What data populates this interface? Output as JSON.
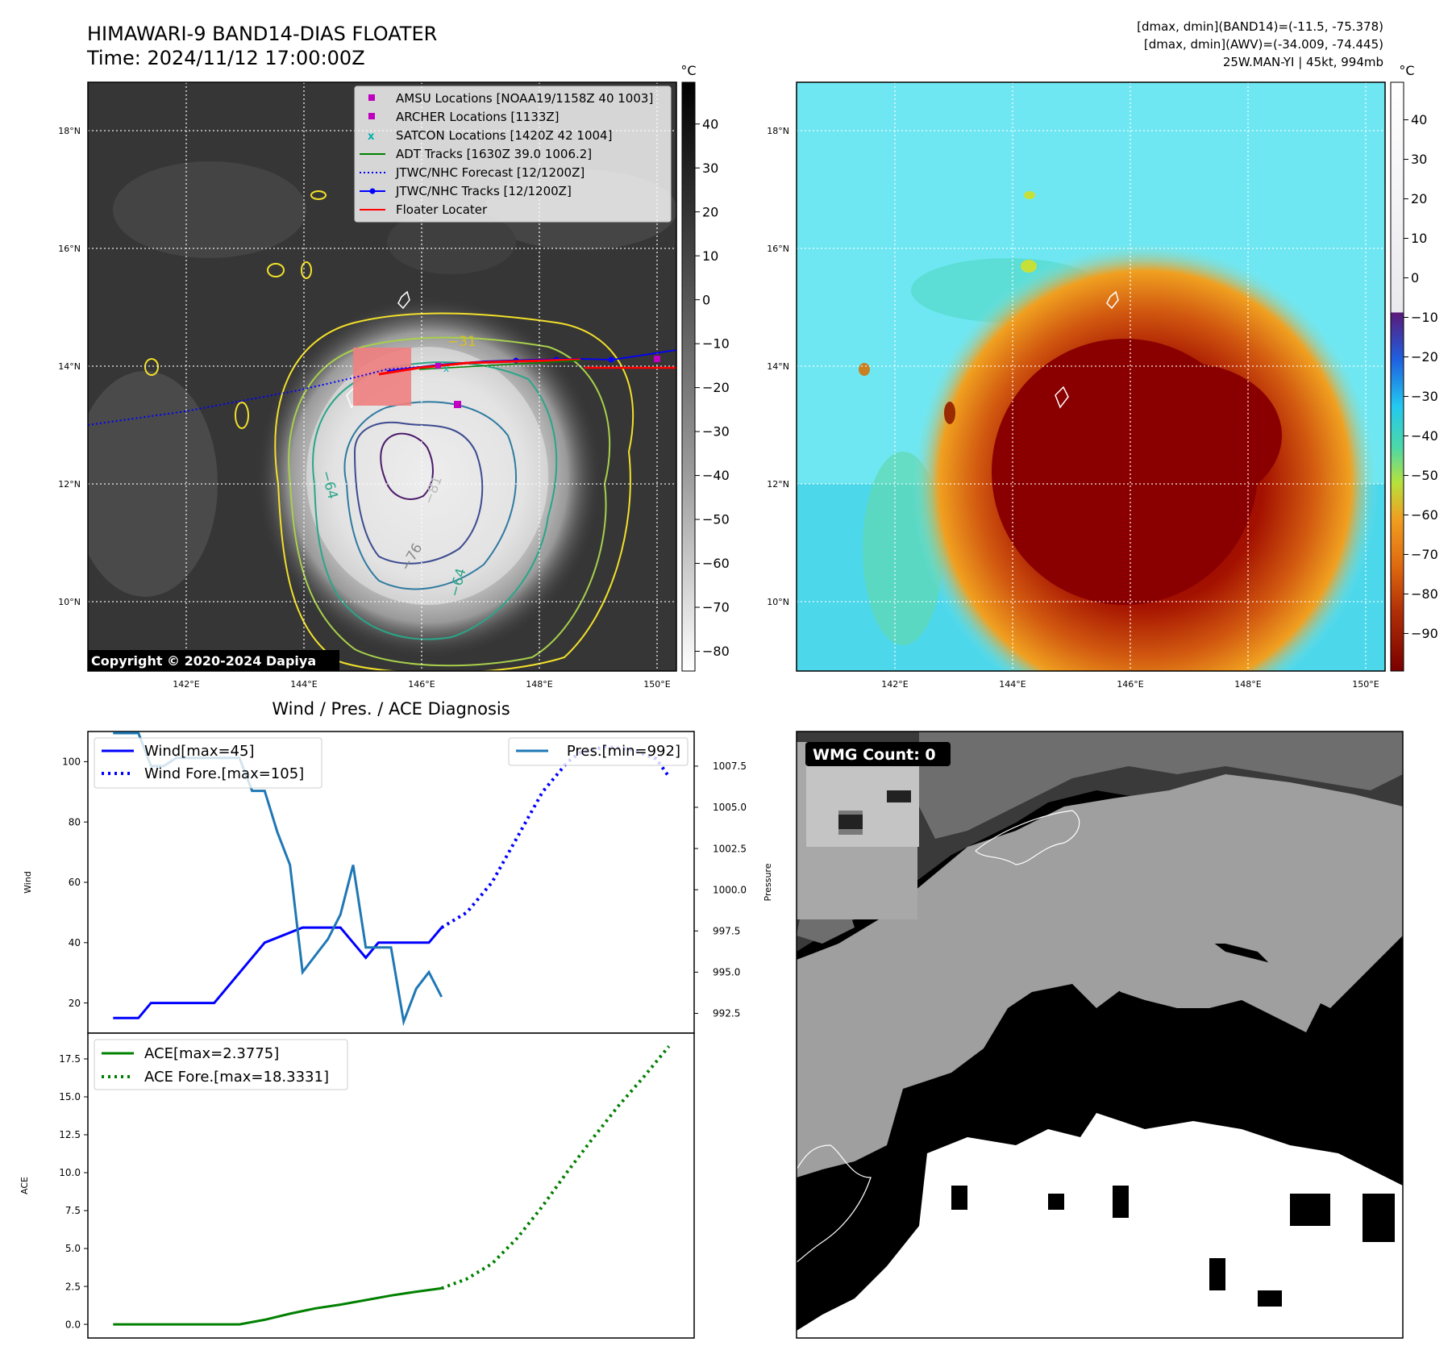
{
  "header": {
    "title": "HIMAWARI-9 BAND14-DIAS FLOATER",
    "time": "Time: 2024/11/12 17:00:00Z",
    "dmax_band14": "[dmax, dmin](BAND14)=(-11.5, -75.378)",
    "dmax_awv": "[dmax, dmin](AWV)=(-34.009, -74.445)",
    "storm": "25W.MAN-YI | 45kt, 994mb"
  },
  "map_axes": {
    "lat_labels": [
      "18°N",
      "16°N",
      "14°N",
      "12°N",
      "10°N"
    ],
    "lon_labels": [
      "142°E",
      "144°E",
      "146°E",
      "148°E",
      "150°E"
    ]
  },
  "ir_panel": {
    "copyright": "Copyright © 2020-2024 Dapiya",
    "colorbar_unit": "°C",
    "colorbar_ticks": [
      "40",
      "30",
      "20",
      "10",
      "0",
      "−10",
      "−20",
      "−30",
      "−40",
      "−50",
      "−60",
      "−70",
      "−80"
    ],
    "contour_labels": [
      "−31",
      "−64",
      "−81",
      "−76",
      "−64"
    ],
    "legend": [
      {
        "label": "AMSU Locations [NOAA19/1158Z 40 1003]",
        "color": "#c000c0",
        "marker": "square"
      },
      {
        "label": "ARCHER Locations [1133Z]",
        "color": "#c000c0",
        "marker": "square"
      },
      {
        "label": "SATCON Locations [1420Z 42 1004]",
        "color": "#00b0b0",
        "marker": "x"
      },
      {
        "label": "ADT Tracks [1630Z 39.0 1006.2]",
        "color": "#008000",
        "marker": "line"
      },
      {
        "label": "JTWC/NHC Forecast [12/1200Z]",
        "color": "#0000ff",
        "marker": "dotted"
      },
      {
        "label": "JTWC/NHC Tracks [12/1200Z]",
        "color": "#0000ff",
        "marker": "line-dot"
      },
      {
        "label": "Floater Locater",
        "color": "#ff0000",
        "marker": "line"
      }
    ]
  },
  "awv_panel": {
    "colorbar_unit": "°C",
    "colorbar_ticks": [
      "40",
      "30",
      "20",
      "10",
      "0",
      "−10",
      "−20",
      "−30",
      "−40",
      "−50",
      "−60",
      "−70",
      "−80",
      "−90"
    ]
  },
  "wmg_panel": {
    "badge": "WMG Count: 0"
  },
  "chart_data": [
    {
      "type": "line",
      "title": "Wind / Pres. / ACE Diagnosis",
      "ylabel": "Wind",
      "ylabel_right": "Pressure",
      "xlim": [
        -2,
        46
      ],
      "ylim": [
        10,
        110
      ],
      "ylim_right": [
        991.3,
        1009.6
      ],
      "yticks": [
        20,
        40,
        60,
        80,
        100
      ],
      "yticks_right": [
        "992.5",
        "995.0",
        "997.5",
        "1000.0",
        "1002.5",
        "1005.0",
        "1007.5"
      ],
      "legend_left": [
        "Wind[max=45]",
        "Wind Fore.[max=105]"
      ],
      "legend_right": [
        "Pres.[min=992]"
      ],
      "series": [
        {
          "name": "Wind[max=45]",
          "color": "#0000ff",
          "style": "solid",
          "x": [
            0,
            2,
            3,
            8,
            10,
            12,
            15,
            17,
            18,
            19,
            20,
            21,
            22,
            23,
            24,
            25,
            26
          ],
          "y": [
            15,
            15,
            20,
            20,
            30,
            40,
            45,
            45,
            45,
            40,
            35,
            40,
            40,
            40,
            40,
            40,
            45
          ]
        },
        {
          "name": "Wind Fore.[max=105]",
          "color": "#0000ff",
          "style": "dotted",
          "x": [
            26,
            28,
            30,
            32,
            34,
            36,
            37,
            39,
            41,
            43,
            44
          ],
          "y": [
            45,
            50,
            60,
            75,
            90,
            100,
            103,
            105,
            104,
            101,
            95
          ]
        },
        {
          "name": "Pres.[min=992]",
          "color": "#1f77b4",
          "style": "solid",
          "axis": "right",
          "x": [
            0,
            2,
            3,
            4,
            5,
            6,
            7,
            8,
            9,
            10,
            11,
            12,
            13,
            14,
            15,
            16,
            17,
            18,
            19,
            20,
            21,
            22,
            23,
            24,
            25,
            26
          ],
          "y": [
            1009.5,
            1009.5,
            1007.5,
            1007.5,
            1008.0,
            1008.0,
            1008.0,
            1008.0,
            1008.0,
            1008.0,
            1006.0,
            1006.0,
            1003.5,
            1001.5,
            995.0,
            996.0,
            997.0,
            998.5,
            1001.5,
            996.5,
            996.5,
            996.5,
            992.0,
            994.0,
            995.0,
            993.5
          ]
        }
      ]
    },
    {
      "type": "line",
      "ylabel": "ACE",
      "xlim": [
        -2,
        46
      ],
      "ylim": [
        -0.9,
        19.2
      ],
      "yticks": [
        "0.0",
        "2.5",
        "5.0",
        "7.5",
        "10.0",
        "12.5",
        "15.0",
        "17.5"
      ],
      "legend": [
        "ACE[max=2.3775]",
        "ACE Fore.[max=18.3331]"
      ],
      "series": [
        {
          "name": "ACE[max=2.3775]",
          "color": "#008000",
          "style": "solid",
          "x": [
            0,
            5,
            10,
            12,
            14,
            16,
            18,
            20,
            22,
            24,
            26
          ],
          "y": [
            0,
            0,
            0,
            0.3,
            0.7,
            1.05,
            1.3,
            1.6,
            1.9,
            2.15,
            2.3775
          ]
        },
        {
          "name": "ACE Fore.[max=18.3331]",
          "color": "#008000",
          "style": "dotted",
          "x": [
            26,
            28,
            30,
            32,
            34,
            36,
            38,
            40,
            42,
            44
          ],
          "y": [
            2.3775,
            3.0,
            4.0,
            5.7,
            7.8,
            10.1,
            12.3,
            14.4,
            16.3,
            18.3331
          ]
        }
      ]
    }
  ]
}
